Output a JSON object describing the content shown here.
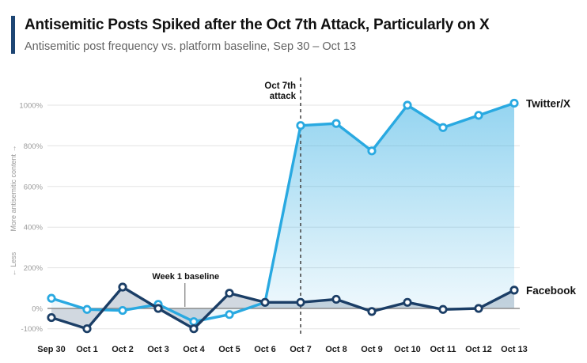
{
  "header": {
    "title": "Antisemitic Posts Spiked after the Oct 7th Attack, Particularly on X",
    "subtitle": "Antisemitic post frequency vs. platform baseline, Sep 30 – Oct 13",
    "accent_color": "#1D4573"
  },
  "chart_data": {
    "type": "line",
    "title": "Antisemitic Posts Spiked after the Oct 7th Attack, Particularly on X",
    "subtitle": "Antisemitic post frequency vs. platform baseline, Sep 30 – Oct 13",
    "categories": [
      "Sep 30",
      "Oct 1",
      "Oct 2",
      "Oct 3",
      "Oct 4",
      "Oct 5",
      "Oct 6",
      "Oct 7",
      "Oct 8",
      "Oct 9",
      "Oct 10",
      "Oct 11",
      "Oct 12",
      "Oct 13"
    ],
    "series": [
      {
        "name": "Twitter/X",
        "color": "#29A9E1",
        "fill_gradient_top": "rgba(41,169,225,0.50)",
        "fill_gradient_bottom": "rgba(41,169,225,0.08)",
        "values": [
          50,
          -5,
          -10,
          20,
          -65,
          -30,
          30,
          900,
          910,
          775,
          1000,
          890,
          950,
          1010
        ]
      },
      {
        "name": "Facebook",
        "color": "#1B3E66",
        "fill_color": "rgba(27,62,102,0.20)",
        "values": [
          -45,
          -100,
          105,
          0,
          -100,
          75,
          30,
          30,
          45,
          -15,
          30,
          -5,
          0,
          90
        ]
      }
    ],
    "yticks_percent": [
      1000,
      800,
      600,
      400,
      200,
      0,
      -100
    ],
    "ytick_suffix": "%",
    "ylim": [
      -150,
      1100
    ],
    "baseline_value": 0,
    "axis_label_upper": "More antisemitic content →",
    "axis_label_lower": "← Less",
    "grid": true,
    "legend_position": "right-of-line-end",
    "annotations": [
      {
        "id": "attack",
        "style": "dashed-vertical",
        "x_index": 7,
        "label_lines": [
          "Oct 7th",
          "attack"
        ]
      },
      {
        "id": "week1",
        "style": "pointer-to-baseline",
        "x_index": 3.75,
        "label_lines": [
          "Week 1 baseline"
        ]
      }
    ]
  }
}
